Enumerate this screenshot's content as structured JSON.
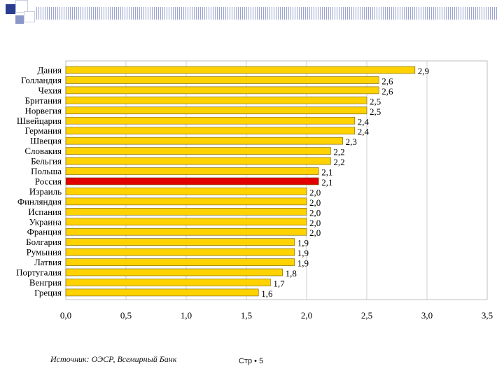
{
  "chart_data": {
    "type": "bar",
    "orientation": "horizontal",
    "categories": [
      "Дания",
      "Голландия",
      "Чехия",
      "Британия",
      "Норвегия",
      "Швейцария",
      "Германия",
      "Швеция",
      "Словакия",
      "Бельгия",
      "Польша",
      "Россия",
      "Израиль",
      "Финляндия",
      "Испания",
      "Украина",
      "Франция",
      "Болгария",
      "Румыния",
      "Латвия",
      "Португалия",
      "Венгрия",
      "Греция"
    ],
    "values": [
      2.9,
      2.6,
      2.6,
      2.5,
      2.5,
      2.4,
      2.4,
      2.3,
      2.2,
      2.2,
      2.1,
      2.1,
      2.0,
      2.0,
      2.0,
      2.0,
      2.0,
      1.9,
      1.9,
      1.9,
      1.8,
      1.7,
      1.6
    ],
    "value_labels": [
      "2,9",
      "2,6",
      "2,6",
      "2,5",
      "2,5",
      "2,4",
      "2,4",
      "2,3",
      "2,2",
      "2,2",
      "2,1",
      "2,1",
      "2,0",
      "2,0",
      "2,0",
      "2,0",
      "2,0",
      "1,9",
      "1,9",
      "1,9",
      "1,8",
      "1,7",
      "1,6"
    ],
    "highlight": "Россия",
    "xlim": [
      0,
      3.5
    ],
    "xticks": [
      0,
      0.5,
      1.0,
      1.5,
      2.0,
      2.5,
      3.0,
      3.5
    ],
    "xtick_labels": [
      "0,0",
      "0,5",
      "1,0",
      "1,5",
      "2,0",
      "2,5",
      "3,0",
      "3,5"
    ],
    "grid": true,
    "title": "",
    "xlabel": "",
    "ylabel": ""
  },
  "colors": {
    "bar": "#FFD200",
    "bar_highlight": "#E00000",
    "bar_outline": "#6b5a00",
    "grid": "#d0d0d0"
  },
  "footer": {
    "source": "Источник: ОЭСР, Всемирный Банк",
    "page": "Стр • 5"
  }
}
